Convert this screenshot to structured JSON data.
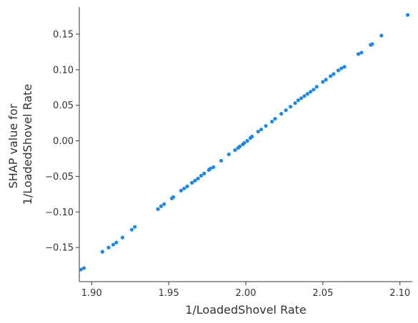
{
  "chart_data": {
    "type": "scatter",
    "title": "",
    "xlabel": "1/LoadedShovel Rate",
    "ylabel_lines": [
      "SHAP value for",
      "1/LoadedShovel Rate"
    ],
    "xlim": [
      1.892,
      2.108
    ],
    "ylim": [
      -0.198,
      0.188
    ],
    "x_ticks": [
      1.9,
      1.95,
      2.0,
      2.05,
      2.1
    ],
    "x_tick_labels": [
      "1.90",
      "1.95",
      "2.00",
      "2.05",
      "2.10"
    ],
    "y_ticks": [
      -0.15,
      -0.1,
      -0.05,
      0.0,
      0.05,
      0.1,
      0.15
    ],
    "y_tick_labels": [
      "−0.15",
      "−0.10",
      "−0.05",
      "0.00",
      "0.05",
      "0.10",
      "0.15"
    ],
    "grid": false,
    "marker_color": "#1e88e5",
    "axis_color": "#333333",
    "points": [
      [
        1.893,
        -0.181
      ],
      [
        1.895,
        -0.179
      ],
      [
        1.907,
        -0.156
      ],
      [
        1.911,
        -0.15
      ],
      [
        1.914,
        -0.146
      ],
      [
        1.916,
        -0.143
      ],
      [
        1.92,
        -0.136
      ],
      [
        1.926,
        -0.125
      ],
      [
        1.928,
        -0.121
      ],
      [
        1.943,
        -0.096
      ],
      [
        1.945,
        -0.092
      ],
      [
        1.947,
        -0.089
      ],
      [
        1.952,
        -0.081
      ],
      [
        1.953,
        -0.079
      ],
      [
        1.958,
        -0.07
      ],
      [
        1.96,
        -0.067
      ],
      [
        1.962,
        -0.064
      ],
      [
        1.965,
        -0.059
      ],
      [
        1.967,
        -0.056
      ],
      [
        1.969,
        -0.053
      ],
      [
        1.971,
        -0.049
      ],
      [
        1.973,
        -0.046
      ],
      [
        1.976,
        -0.041
      ],
      [
        1.977,
        -0.039
      ],
      [
        1.979,
        -0.037
      ],
      [
        1.984,
        -0.028
      ],
      [
        1.989,
        -0.019
      ],
      [
        1.993,
        -0.013
      ],
      [
        1.995,
        -0.01
      ],
      [
        1.996,
        -0.008
      ],
      [
        1.998,
        -0.005
      ],
      [
        1.999,
        -0.003
      ],
      [
        2.001,
        0.0
      ],
      [
        2.003,
        0.004
      ],
      [
        2.004,
        0.006
      ],
      [
        2.008,
        0.013
      ],
      [
        2.01,
        0.016
      ],
      [
        2.013,
        0.021
      ],
      [
        2.017,
        0.027
      ],
      [
        2.019,
        0.031
      ],
      [
        2.023,
        0.038
      ],
      [
        2.026,
        0.043
      ],
      [
        2.029,
        0.048
      ],
      [
        2.032,
        0.053
      ],
      [
        2.034,
        0.057
      ],
      [
        2.036,
        0.06
      ],
      [
        2.038,
        0.063
      ],
      [
        2.04,
        0.066
      ],
      [
        2.042,
        0.069
      ],
      [
        2.044,
        0.072
      ],
      [
        2.046,
        0.076
      ],
      [
        2.05,
        0.083
      ],
      [
        2.052,
        0.086
      ],
      [
        2.055,
        0.091
      ],
      [
        2.057,
        0.094
      ],
      [
        2.06,
        0.099
      ],
      [
        2.062,
        0.102
      ],
      [
        2.064,
        0.104
      ],
      [
        2.073,
        0.122
      ],
      [
        2.075,
        0.124
      ],
      [
        2.081,
        0.135
      ],
      [
        2.082,
        0.136
      ],
      [
        2.088,
        0.148
      ],
      [
        2.105,
        0.177
      ]
    ]
  }
}
